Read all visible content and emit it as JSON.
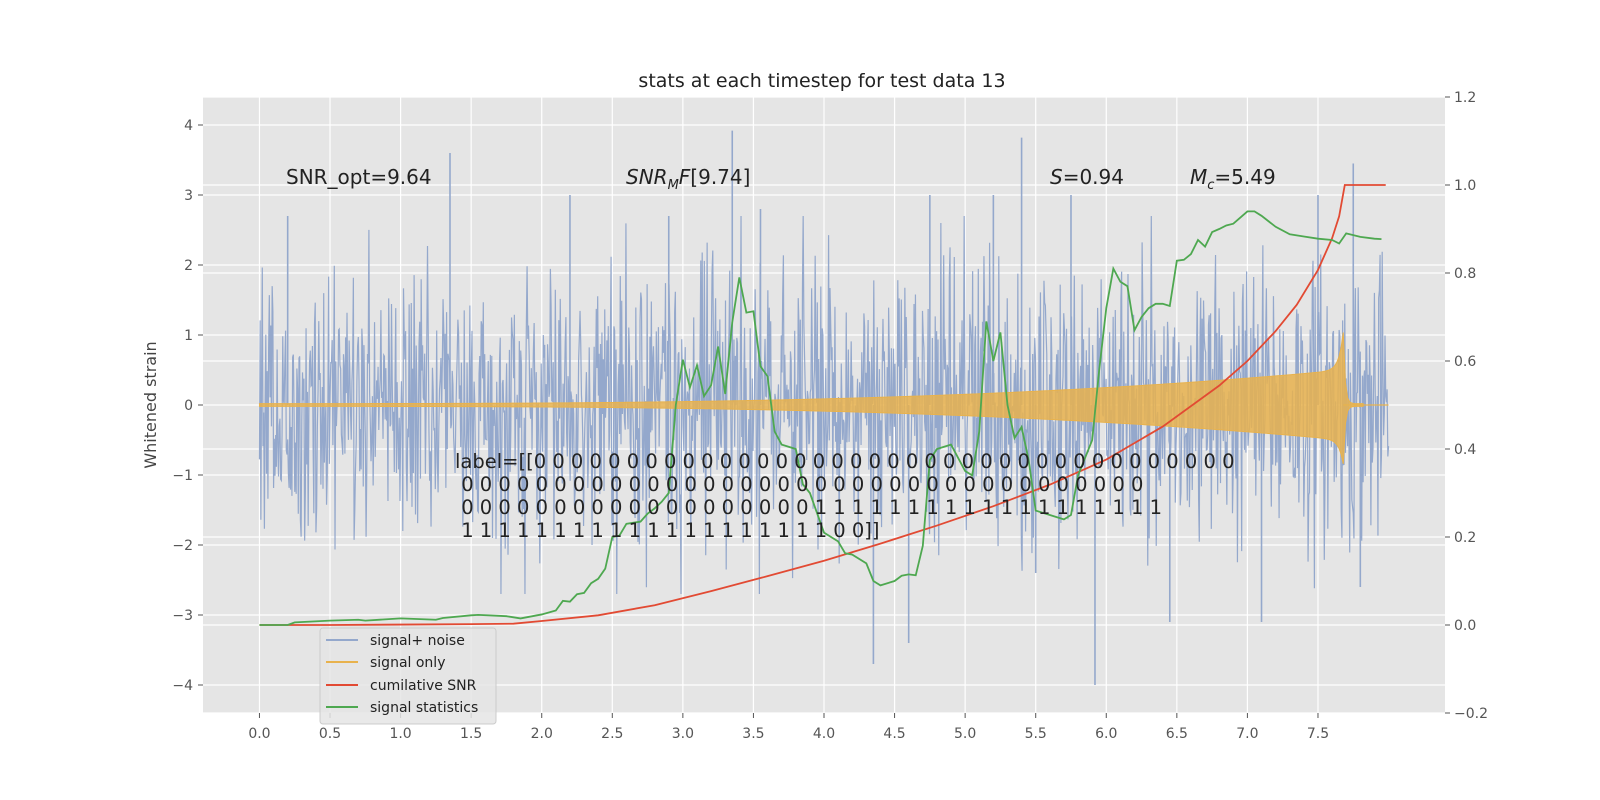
{
  "chart_data": {
    "type": "line",
    "title": "stats at each timestep for test data 13",
    "ylabel": "Whitened strain",
    "ylim": [
      -4.4,
      4.4
    ],
    "y2lim": [
      -0.2,
      1.2
    ],
    "xlim": [
      -0.4,
      8.4
    ],
    "x_ticks": [
      0.0,
      0.5,
      1.0,
      1.5,
      2.0,
      2.5,
      3.0,
      3.5,
      4.0,
      4.5,
      5.0,
      5.5,
      6.0,
      6.5,
      7.0,
      7.5
    ],
    "x_tick_labels": [
      "0.0",
      "0.5",
      "1.0",
      "1.5",
      "2.0",
      "2.5",
      "3.0",
      "3.5",
      "4.0",
      "4.5",
      "5.0",
      "5.5",
      "6.0",
      "6.5",
      "7.0",
      "7.5"
    ],
    "y_ticks": [
      -4,
      -3,
      -2,
      -1,
      0,
      1,
      2,
      3,
      4
    ],
    "y_tick_labels": [
      "−4",
      "−3",
      "−2",
      "−1",
      "0",
      "1",
      "2",
      "3",
      "4"
    ],
    "y2_ticks": [
      -0.2,
      0.0,
      0.2,
      0.4,
      0.6,
      0.8,
      1.0,
      1.2
    ],
    "y2_tick_labels": [
      "−0.2",
      "0.0",
      "0.2",
      "0.4",
      "0.6",
      "0.8",
      "1.0",
      "1.2"
    ],
    "grid": true,
    "legend_position": "lower-left",
    "background_color": "#e5e5e5",
    "annotations": {
      "snr_opt": "SNR_opt=9.64",
      "snr_mf": "[9.74]",
      "overlap": "=0.94",
      "chirp_mass": "=5.49"
    },
    "label_lines": [
      "label=[[0 0 0 0 0 0 0 0 0 0 0 0 0 0 0 0 0 0 0 0 0 0 0 0 0 0 0 0 0 0 0 0 0 0 0 0 0 0",
      " 0 0 0 0 0 0 0 0 0 0 0 0 0 0 0 0 0 0 0 0 0 0 0 0 0 0 0 0 0 0 0 0 0 0 0 0 0",
      " 0 0 0 0 0 0 0 0 0 0 0 0 0 0 0 0 0 0 0 1 1 1 1 1 1 1 1 1 1 1 1 1 1 1 1 1 1 1",
      " 1 1 1 1 1 1 1 1 1 1 1 1 1 1 1 1 1 1 1 1 0 0]]"
    ],
    "series": [
      {
        "name": "signal+ noise",
        "color": "#94a8cc",
        "t_start": 0.0,
        "t_end": 8.0,
        "samples": 1600,
        "sigma": 1.0,
        "peaks": [
          [
            0.2,
            2.7
          ],
          [
            1.35,
            3.6
          ],
          [
            2.2,
            3.0
          ],
          [
            2.9,
            2.7
          ],
          [
            3.35,
            3.92
          ],
          [
            3.55,
            2.8
          ],
          [
            4.35,
            -3.7
          ],
          [
            4.6,
            -3.4
          ],
          [
            4.75,
            3.0
          ],
          [
            5.2,
            3.0
          ],
          [
            5.4,
            3.82
          ],
          [
            5.5,
            -2.4
          ],
          [
            5.75,
            3.0
          ],
          [
            5.92,
            -4.0
          ],
          [
            6.45,
            -3.1
          ],
          [
            7.1,
            -3.1
          ],
          [
            7.5,
            3.0
          ],
          [
            7.75,
            3.45
          ],
          [
            7.8,
            -2.6
          ]
        ]
      },
      {
        "name": "signal only",
        "color": "#e8b24d",
        "t_start": 0.0,
        "t_end": 7.82,
        "merger_time": 7.68,
        "amp_start": 0.02,
        "amp_end": 0.5,
        "peak_amp_pos": 1.05,
        "peak_amp_neg": -0.85
      },
      {
        "name": "cumilative SNR",
        "color": "#e24a33",
        "x": [
          0,
          0.5,
          1.0,
          1.5,
          1.8,
          2.0,
          2.4,
          2.8,
          3.2,
          3.6,
          4.0,
          4.4,
          4.8,
          5.2,
          5.6,
          6.0,
          6.4,
          6.8,
          7.0,
          7.2,
          7.35,
          7.5,
          7.6,
          7.65,
          7.69,
          7.75,
          7.9,
          7.98
        ],
        "y": [
          0.0,
          0.0,
          0.001,
          0.002,
          0.003,
          0.009,
          0.022,
          0.045,
          0.077,
          0.111,
          0.146,
          0.185,
          0.226,
          0.27,
          0.319,
          0.376,
          0.451,
          0.544,
          0.6,
          0.668,
          0.728,
          0.807,
          0.879,
          0.929,
          1.0,
          1.0,
          1.0,
          1.0
        ]
      },
      {
        "name": "signal statistics",
        "color": "#4ea850",
        "x": [
          0,
          0.2,
          0.25,
          0.5,
          0.7,
          0.75,
          1.0,
          1.25,
          1.3,
          1.5,
          1.55,
          1.75,
          1.85,
          2.0,
          2.1,
          2.15,
          2.2,
          2.25,
          2.3,
          2.35,
          2.4,
          2.45,
          2.5,
          2.55,
          2.6,
          2.7,
          2.75,
          2.8,
          2.85,
          2.9,
          2.95,
          3.0,
          3.05,
          3.1,
          3.15,
          3.2,
          3.25,
          3.3,
          3.35,
          3.4,
          3.45,
          3.5,
          3.55,
          3.6,
          3.65,
          3.7,
          3.8,
          3.85,
          3.9,
          4.0,
          4.1,
          4.15,
          4.2,
          4.3,
          4.35,
          4.4,
          4.5,
          4.55,
          4.6,
          4.65,
          4.7,
          4.75,
          4.8,
          4.9,
          4.95,
          5.0,
          5.05,
          5.1,
          5.15,
          5.2,
          5.25,
          5.3,
          5.35,
          5.4,
          5.45,
          5.5,
          5.6,
          5.7,
          5.75,
          5.8,
          5.9,
          5.95,
          6.0,
          6.05,
          6.1,
          6.15,
          6.2,
          6.25,
          6.3,
          6.35,
          6.4,
          6.45,
          6.5,
          6.55,
          6.6,
          6.65,
          6.7,
          6.75,
          6.8,
          6.85,
          6.9,
          7.0,
          7.05,
          7.1,
          7.2,
          7.3,
          7.4,
          7.5,
          7.6,
          7.65,
          7.7,
          7.8,
          7.9,
          7.95
        ],
        "y": [
          0.0,
          0.0,
          0.006,
          0.01,
          0.012,
          0.01,
          0.015,
          0.012,
          0.016,
          0.022,
          0.023,
          0.02,
          0.015,
          0.024,
          0.033,
          0.055,
          0.053,
          0.07,
          0.073,
          0.095,
          0.105,
          0.128,
          0.2,
          0.203,
          0.23,
          0.235,
          0.253,
          0.265,
          0.28,
          0.3,
          0.5,
          0.603,
          0.54,
          0.59,
          0.52,
          0.545,
          0.633,
          0.525,
          0.688,
          0.79,
          0.71,
          0.713,
          0.588,
          0.565,
          0.44,
          0.41,
          0.4,
          0.32,
          0.3,
          0.21,
          0.19,
          0.163,
          0.16,
          0.14,
          0.1,
          0.09,
          0.1,
          0.112,
          0.115,
          0.113,
          0.18,
          0.375,
          0.4,
          0.41,
          0.38,
          0.35,
          0.34,
          0.44,
          0.69,
          0.6,
          0.665,
          0.5,
          0.425,
          0.45,
          0.375,
          0.26,
          0.25,
          0.24,
          0.25,
          0.34,
          0.42,
          0.58,
          0.72,
          0.81,
          0.78,
          0.77,
          0.67,
          0.7,
          0.72,
          0.73,
          0.73,
          0.725,
          0.828,
          0.83,
          0.843,
          0.875,
          0.86,
          0.893,
          0.9,
          0.908,
          0.912,
          0.94,
          0.94,
          0.93,
          0.905,
          0.888,
          0.883,
          0.878,
          0.875,
          0.867,
          0.89,
          0.882,
          0.878,
          0.877
        ]
      }
    ]
  }
}
